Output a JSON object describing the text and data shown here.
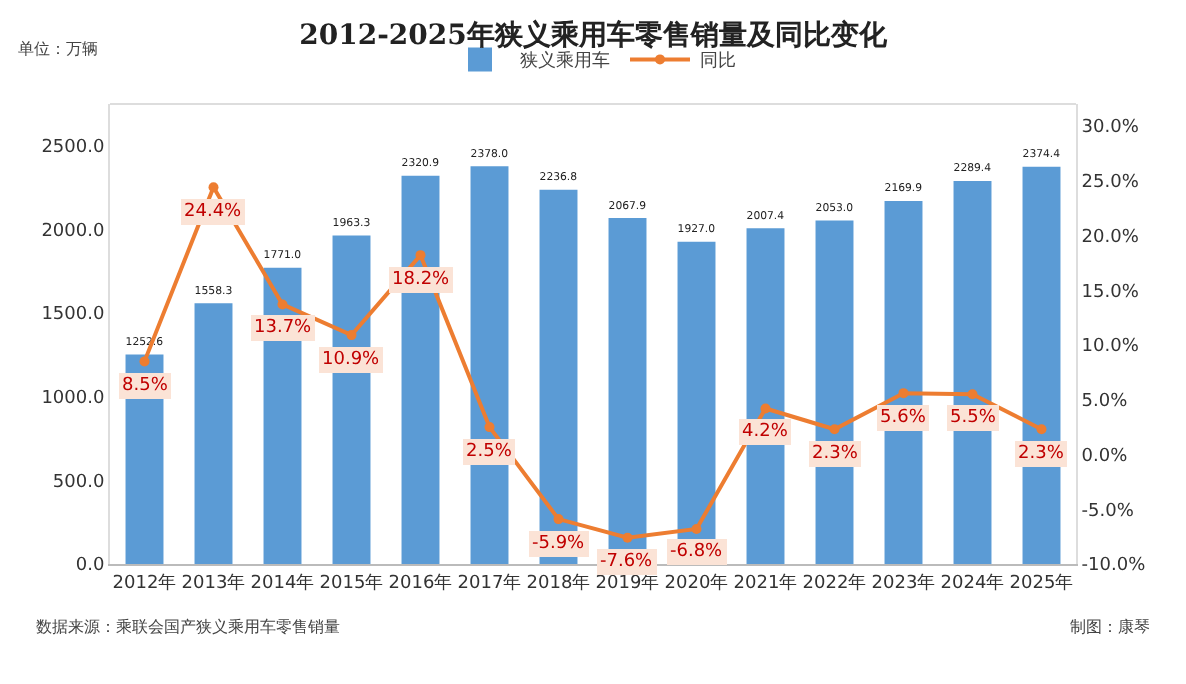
{
  "chart_data": {
    "type": "bar",
    "title": "2012-2025年狭义乘用车零售销量及同比变化",
    "ylabel": "单位：万辆",
    "categories": [
      "2012年",
      "2013年",
      "2014年",
      "2015年",
      "2016年",
      "2017年",
      "2018年",
      "2019年",
      "2020年",
      "2021年",
      "2022年",
      "2023年",
      "2024年",
      "2025年"
    ],
    "series": [
      {
        "name": "狭义乘用车",
        "color": "#5b9bd5",
        "values": [
          1252.6,
          1558.3,
          1771.0,
          1963.3,
          2320.9,
          2378.0,
          2236.8,
          2067.9,
          1927.0,
          2007.4,
          2053.0,
          2169.9,
          2289.4,
          2374.4
        ],
        "value_labels": [
          "1252.6",
          "1558.3",
          "1771.0",
          "1963.3",
          "2320.9",
          "2378.0",
          "2236.8",
          "2067.9",
          "1927.0",
          "2007.4",
          "2053.0",
          "2169.9",
          "2289.4",
          "2374.4"
        ]
      },
      {
        "name": "同比",
        "type": "line",
        "axis": "y2",
        "color": "#ed7d31",
        "marker": "circle",
        "values": [
          8.5,
          24.4,
          13.7,
          10.9,
          18.2,
          2.5,
          -5.9,
          -7.6,
          -6.8,
          4.2,
          2.3,
          5.6,
          5.5,
          2.3
        ],
        "value_labels": [
          "8.5%",
          "24.4%",
          "13.7%",
          "10.9%",
          "18.2%",
          "2.5%",
          "-5.9%",
          "-7.6%",
          "-6.8%",
          "4.2%",
          "2.3%",
          "5.6%",
          "5.5%",
          "2.3%"
        ]
      }
    ],
    "ylim": [
      0,
      2750
    ],
    "yticks": [
      {
        "value": 0,
        "label": "0.0"
      },
      {
        "value": 500,
        "label": "500.0"
      },
      {
        "value": 1000,
        "label": "1000.0"
      },
      {
        "value": 1500,
        "label": "1500.0"
      },
      {
        "value": 2000,
        "label": "2000.0"
      },
      {
        "value": 2500,
        "label": "2500.0"
      }
    ],
    "y2lim": [
      -10,
      32
    ],
    "y2ticks": [
      {
        "value": -10,
        "label": "-10.0%"
      },
      {
        "value": -5,
        "label": "-5.0%"
      },
      {
        "value": 0,
        "label": "0.0%"
      },
      {
        "value": 5,
        "label": "5.0%"
      },
      {
        "value": 10,
        "label": "10.0%"
      },
      {
        "value": 15,
        "label": "15.0%"
      },
      {
        "value": 20,
        "label": "20.0%"
      },
      {
        "value": 25,
        "label": "25.0%"
      },
      {
        "value": 30,
        "label": "30.0%"
      }
    ],
    "legend": "top",
    "annotations": [
      "数据来源：乘联会国产狭义乘用车零售销量",
      "制图：康琴"
    ]
  }
}
